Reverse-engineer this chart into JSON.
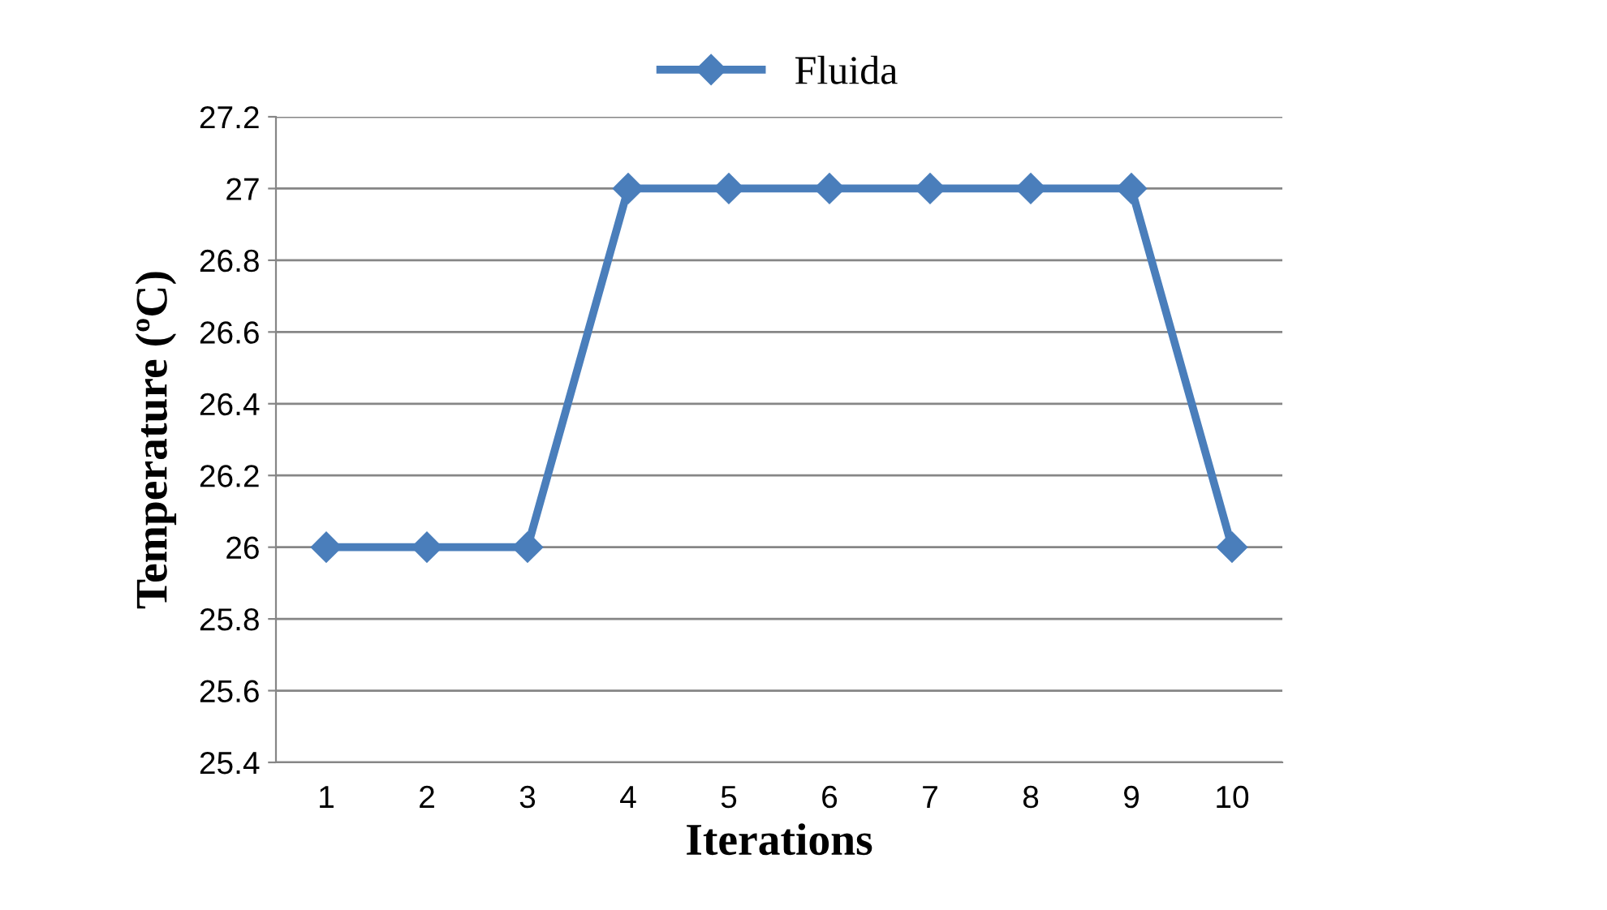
{
  "chart_data": {
    "type": "line",
    "xlabel": "Iterations",
    "ylabel": "Temperature (ºC)",
    "categories": [
      "1",
      "2",
      "3",
      "4",
      "5",
      "6",
      "7",
      "8",
      "9",
      "10"
    ],
    "series": [
      {
        "name": "Fluida",
        "color": "#4a7ebb",
        "values": [
          26,
          26,
          26,
          27,
          27,
          27,
          27,
          27,
          27,
          26
        ]
      }
    ],
    "ylim": [
      25.4,
      27.2
    ],
    "yticks": [
      25.4,
      25.6,
      25.8,
      26,
      26.2,
      26.4,
      26.6,
      26.8,
      27,
      27.2
    ],
    "grid": "y",
    "legend": "top",
    "marker": "diamond",
    "line_style": "solid"
  }
}
